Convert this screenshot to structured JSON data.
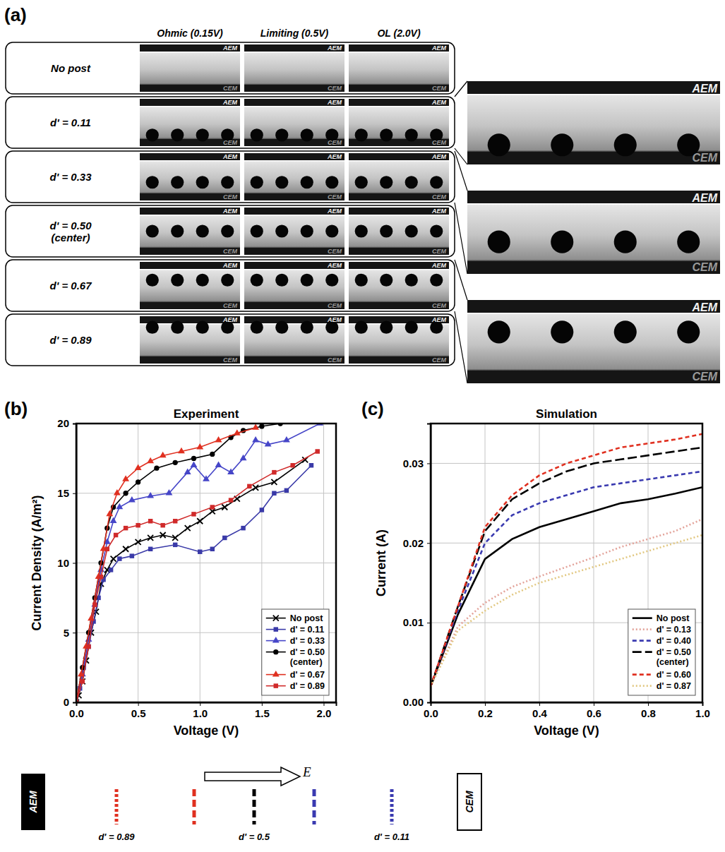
{
  "panel_labels": {
    "a": "(a)",
    "b": "(b)",
    "c": "(c)"
  },
  "panel_a": {
    "columns": [
      "Ohmic (0.15V)",
      "Limiting (0.5V)",
      "OL (2.0V)"
    ],
    "top_label": "AEM",
    "bottom_label": "CEM",
    "rows": [
      {
        "label": "No post",
        "d": null
      },
      {
        "label": "d' = 0.11",
        "d": 0.11
      },
      {
        "label": "d' = 0.33",
        "d": 0.33
      },
      {
        "label": "d' = 0.50 (center)",
        "d": 0.5
      },
      {
        "label": "d' = 0.67",
        "d": 0.67
      },
      {
        "label": "d' = 0.89",
        "d": 0.89
      }
    ],
    "zooms": [
      {
        "d": 0.11
      },
      {
        "d": 0.33
      },
      {
        "d": 0.67
      }
    ]
  },
  "chart_data": [
    {
      "type": "line",
      "title": "Experiment",
      "x_label": "Voltage (V)",
      "y_label": "Current Density (A/m²)",
      "xlim": [
        0,
        2.1
      ],
      "ylim": [
        0,
        20
      ],
      "xticks": [
        {
          "value": 0,
          "label": "0.0"
        },
        0.5,
        {
          "value": 1,
          "label": "1.0"
        },
        1.5,
        {
          "value": 2,
          "label": "2.0"
        }
      ],
      "yticks": [
        0,
        5,
        10,
        15,
        20
      ],
      "grid": true,
      "legend": "lower right",
      "series": [
        {
          "name": "No post",
          "color": "#000000",
          "marker": "x",
          "x": [
            0,
            0.02,
            0.05,
            0.08,
            0.12,
            0.16,
            0.2,
            0.25,
            0.3,
            0.4,
            0.5,
            0.6,
            0.7,
            0.8,
            0.9,
            1.0,
            1.1,
            1.2,
            1.3,
            1.45,
            1.6,
            1.85
          ],
          "values": [
            0,
            0.5,
            1.5,
            3,
            5,
            6.5,
            8.5,
            9.5,
            10.3,
            11,
            11.5,
            11.8,
            12,
            11.8,
            12.5,
            13,
            13.7,
            14,
            14.6,
            15.4,
            15.8,
            17.4
          ]
        },
        {
          "name": "d' = 0.11",
          "color": "#3a3aa8",
          "marker": "square",
          "x": [
            0,
            0.03,
            0.06,
            0.1,
            0.14,
            0.18,
            0.22,
            0.28,
            0.35,
            0.45,
            0.6,
            0.8,
            1.0,
            1.1,
            1.2,
            1.35,
            1.5,
            1.6,
            1.7,
            1.9
          ],
          "values": [
            0,
            1,
            2.5,
            4,
            5.8,
            7.5,
            8.8,
            9.5,
            10.3,
            10.5,
            11,
            11.3,
            10.8,
            11,
            11.8,
            12.5,
            13.8,
            15,
            15.2,
            17
          ]
        },
        {
          "name": "d' = 0.33",
          "color": "#4646c8",
          "marker": "triangle",
          "x": [
            0,
            0.05,
            0.1,
            0.15,
            0.2,
            0.25,
            0.3,
            0.35,
            0.45,
            0.6,
            0.75,
            0.9,
            0.95,
            1.05,
            1.15,
            1.25,
            1.35,
            1.45,
            1.55,
            1.7,
            1.97
          ],
          "values": [
            0,
            2,
            4.5,
            7,
            9.5,
            11.5,
            13,
            14,
            14.5,
            14.8,
            15,
            16.5,
            17,
            16,
            17,
            16.5,
            17.5,
            18.8,
            18.5,
            18.8,
            20
          ]
        },
        {
          "name": "d' = 0.50 (center)",
          "color": "#000000",
          "marker": "circle",
          "x": [
            0,
            0.05,
            0.1,
            0.15,
            0.2,
            0.25,
            0.3,
            0.4,
            0.5,
            0.65,
            0.8,
            0.95,
            1.1,
            1.25,
            1.35,
            1.5,
            1.65
          ],
          "values": [
            0,
            2.5,
            5,
            7.5,
            10,
            12.5,
            14,
            15,
            15.8,
            16.8,
            17.2,
            17.5,
            17.8,
            19,
            19.5,
            19.8,
            20
          ]
        },
        {
          "name": "d' = 0.67",
          "color": "#e03020",
          "marker": "triangle",
          "x": [
            0,
            0.04,
            0.08,
            0.12,
            0.18,
            0.22,
            0.27,
            0.33,
            0.4,
            0.5,
            0.6,
            0.7,
            0.85,
            1.0,
            1.15,
            1.3,
            1.45
          ],
          "values": [
            0,
            2,
            4,
            6,
            9,
            11,
            13.5,
            15,
            16,
            16.8,
            17.3,
            17.7,
            18,
            18.3,
            18.8,
            19.3,
            19.7
          ]
        },
        {
          "name": "d' = 0.89",
          "color": "#d02a2a",
          "marker": "square",
          "x": [
            0,
            0.05,
            0.1,
            0.15,
            0.2,
            0.25,
            0.32,
            0.4,
            0.5,
            0.6,
            0.7,
            0.8,
            0.95,
            1.1,
            1.25,
            1.4,
            1.6,
            1.75,
            1.95
          ],
          "values": [
            0,
            1.5,
            4,
            7,
            9,
            11,
            12,
            12.5,
            12.7,
            13,
            12.7,
            13,
            13.5,
            14,
            14.5,
            15.5,
            16.5,
            17,
            18
          ]
        }
      ]
    },
    {
      "type": "line",
      "title": "Simulation",
      "x_label": "Voltage (V)",
      "y_label": "Current (A)",
      "xlim": [
        0,
        1.0
      ],
      "ylim": [
        0,
        0.035
      ],
      "xticks": [
        {
          "value": 0,
          "label": "0.0"
        },
        0.2,
        0.4,
        0.6,
        0.8,
        {
          "value": 1,
          "label": "1.0"
        }
      ],
      "yticks": [
        {
          "value": 0,
          "label": "0.00"
        },
        0.01,
        0.02,
        0.03
      ],
      "grid": true,
      "legend": "lower right",
      "x": [
        0,
        0.1,
        0.2,
        0.3,
        0.4,
        0.5,
        0.6,
        0.7,
        0.8,
        0.9,
        1.0
      ],
      "series": [
        {
          "name": "No post",
          "color": "#000000",
          "line_style": "solid",
          "values": [
            0.002,
            0.011,
            0.018,
            0.0205,
            0.022,
            0.023,
            0.024,
            0.025,
            0.0255,
            0.0262,
            0.027
          ]
        },
        {
          "name": "d' = 0.13",
          "color": "#e3a39a",
          "line_style": "dotted",
          "values": [
            0.002,
            0.0095,
            0.0125,
            0.0145,
            0.0158,
            0.017,
            0.0182,
            0.0195,
            0.0205,
            0.0215,
            0.023
          ]
        },
        {
          "name": "d' = 0.40",
          "color": "#3a3ab0",
          "line_style": "dashed",
          "values": [
            0.002,
            0.0115,
            0.02,
            0.0235,
            0.025,
            0.026,
            0.027,
            0.0275,
            0.028,
            0.0285,
            0.029
          ]
        },
        {
          "name": "d' = 0.50 (center)",
          "color": "#000000",
          "line_style": "long-dashed",
          "values": [
            0.002,
            0.012,
            0.0215,
            0.0255,
            0.0275,
            0.029,
            0.03,
            0.0305,
            0.031,
            0.0315,
            0.032
          ]
        },
        {
          "name": "d' = 0.60",
          "color": "#e03020",
          "line_style": "dashed",
          "values": [
            0.002,
            0.012,
            0.022,
            0.026,
            0.0285,
            0.03,
            0.031,
            0.032,
            0.0325,
            0.033,
            0.0337
          ]
        },
        {
          "name": "d' = 0.87",
          "color": "#e2c882",
          "line_style": "dotted",
          "values": [
            0.002,
            0.009,
            0.0115,
            0.0135,
            0.015,
            0.016,
            0.017,
            0.018,
            0.019,
            0.02,
            0.021
          ]
        }
      ]
    }
  ],
  "schematic": {
    "left": "AEM",
    "right": "CEM",
    "field": "E",
    "lines": [
      {
        "d": 0.89,
        "color": "#e03020",
        "line_style": "dotted",
        "label": "d' = 0.89"
      },
      {
        "d": 0.67,
        "color": "#e03020",
        "line_style": "dashed"
      },
      {
        "d": 0.5,
        "color": "#000000",
        "line_style": "dashed",
        "label": "d' = 0.5"
      },
      {
        "d": 0.33,
        "color": "#3a3ab0",
        "line_style": "dashed"
      },
      {
        "d": 0.11,
        "color": "#3a3ab0",
        "line_style": "dotted",
        "label": "d' = 0.11"
      }
    ]
  }
}
